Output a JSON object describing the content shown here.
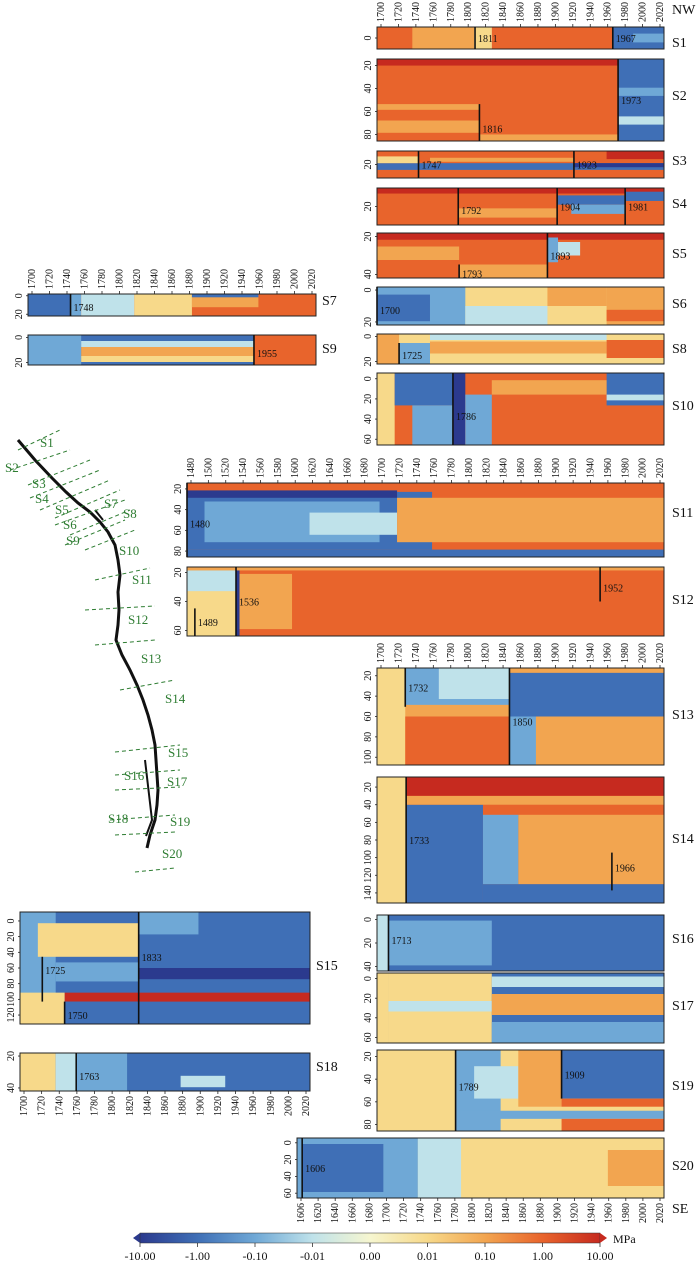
{
  "figure": {
    "orientation_top": "NW",
    "orientation_bottom": "SE",
    "colorbar": {
      "ticks": [
        "-10.00",
        "-1.00",
        "-0.10",
        "-0.01",
        "0.00",
        "0.01",
        "0.10",
        "1.00",
        "10.00"
      ],
      "unit": "MPa",
      "colors": [
        "#2b3a8e",
        "#3f6fb6",
        "#6fa8d6",
        "#bfe2ea",
        "#f6f6d0",
        "#f7d98a",
        "#f2a550",
        "#e8642c",
        "#c62a1f"
      ]
    },
    "map_labels": [
      "S1",
      "S2",
      "S3",
      "S4",
      "S5",
      "S6",
      "S7",
      "S8",
      "S9",
      "S10",
      "S11",
      "S12",
      "S13",
      "S14",
      "S15",
      "S16",
      "S17",
      "S18",
      "S19",
      "S20"
    ]
  },
  "chart_data": [
    {
      "type": "heatmap",
      "segment": "S1",
      "x_range": [
        1700,
        2025
      ],
      "x_ticks": [
        "1700",
        "1720",
        "1740",
        "1760",
        "1780",
        "1800",
        "1820",
        "1840",
        "1860",
        "1880",
        "1900",
        "1920",
        "1940",
        "1960",
        "1980",
        "2000",
        "2020"
      ],
      "y_ticks": [
        "0"
      ],
      "events": [
        "1811",
        "1967"
      ]
    },
    {
      "type": "heatmap",
      "segment": "S2",
      "x_range": [
        1700,
        2025
      ],
      "y_ticks": [
        "20",
        "40",
        "60",
        "80"
      ],
      "events": [
        "1816",
        "1973"
      ]
    },
    {
      "type": "heatmap",
      "segment": "S3",
      "x_range": [
        1700,
        2025
      ],
      "y_ticks": [
        "20"
      ],
      "events": [
        "1747",
        "1923"
      ]
    },
    {
      "type": "heatmap",
      "segment": "S4",
      "x_range": [
        1700,
        2025
      ],
      "y_ticks": [
        "20"
      ],
      "events": [
        "1792",
        "1904",
        "1981"
      ]
    },
    {
      "type": "heatmap",
      "segment": "S5",
      "x_range": [
        1700,
        2025
      ],
      "y_ticks": [
        "20",
        "40"
      ],
      "events": [
        "1793",
        "1893"
      ]
    },
    {
      "type": "heatmap",
      "segment": "S6",
      "x_range": [
        1700,
        2025
      ],
      "y_ticks": [
        "0",
        "20"
      ],
      "events": [
        "1700"
      ]
    },
    {
      "type": "heatmap",
      "segment": "S7",
      "x_range": [
        1700,
        2025
      ],
      "x_ticks": [
        "1700",
        "1720",
        "1740",
        "1760",
        "1780",
        "1800",
        "1820",
        "1840",
        "1860",
        "1880",
        "1900",
        "1920",
        "1940",
        "1960",
        "1980",
        "2000",
        "2020"
      ],
      "y_ticks": [
        "0",
        "20"
      ],
      "events": [
        "1748"
      ]
    },
    {
      "type": "heatmap",
      "segment": "S8",
      "x_range": [
        1700,
        2025
      ],
      "y_ticks": [
        "0",
        "20"
      ],
      "events": [
        "1725"
      ]
    },
    {
      "type": "heatmap",
      "segment": "S9",
      "x_range": [
        1700,
        2025
      ],
      "y_ticks": [
        "0",
        "20"
      ],
      "events": [
        "1955"
      ]
    },
    {
      "type": "heatmap",
      "segment": "S10",
      "x_range": [
        1700,
        2025
      ],
      "y_ticks": [
        "0",
        "20",
        "40",
        "60"
      ],
      "events": [
        "1786"
      ]
    },
    {
      "type": "heatmap",
      "segment": "S11",
      "x_range": [
        1480,
        2025
      ],
      "x_ticks": [
        "1480",
        "1500",
        "1520",
        "1540",
        "1560",
        "1580",
        "1600",
        "1620",
        "1640",
        "1660",
        "1680",
        "1700",
        "1720",
        "1740",
        "1760",
        "1780",
        "1800",
        "1820",
        "1840",
        "1860",
        "1880",
        "1900",
        "1920",
        "1940",
        "1960",
        "1980",
        "2000",
        "2020"
      ],
      "y_ticks": [
        "20",
        "40",
        "60",
        "80"
      ],
      "events": [
        "1480"
      ]
    },
    {
      "type": "heatmap",
      "segment": "S12",
      "x_range": [
        1480,
        2025
      ],
      "y_ticks": [
        "20",
        "40",
        "60"
      ],
      "events": [
        "1489",
        "1536",
        "1952"
      ]
    },
    {
      "type": "heatmap",
      "segment": "S13",
      "x_range": [
        1700,
        2025
      ],
      "x_ticks": [
        "1700",
        "1720",
        "1740",
        "1760",
        "1780",
        "1800",
        "1820",
        "1840",
        "1860",
        "1880",
        "1900",
        "1920",
        "1940",
        "1960",
        "1980",
        "2000",
        "2020"
      ],
      "y_ticks": [
        "20",
        "40",
        "60",
        "80",
        "100"
      ],
      "events": [
        "1732",
        "1850"
      ]
    },
    {
      "type": "heatmap",
      "segment": "S14",
      "x_range": [
        1700,
        2025
      ],
      "y_ticks": [
        "20",
        "40",
        "60",
        "80",
        "100",
        "120",
        "140"
      ],
      "events": [
        "1733",
        "1966"
      ]
    },
    {
      "type": "heatmap",
      "segment": "S15",
      "x_range": [
        1700,
        2025
      ],
      "y_ticks": [
        "0",
        "20",
        "40",
        "60",
        "80",
        "100",
        "120"
      ],
      "events": [
        "1725",
        "1833",
        "1750"
      ]
    },
    {
      "type": "heatmap",
      "segment": "S16",
      "x_range": [
        1700,
        2025
      ],
      "y_ticks": [
        "0",
        "20",
        "40"
      ],
      "events": [
        "1713"
      ]
    },
    {
      "type": "heatmap",
      "segment": "S17",
      "x_range": [
        1700,
        2025
      ],
      "y_ticks": [
        "0",
        "20",
        "40",
        "60"
      ],
      "events": []
    },
    {
      "type": "heatmap",
      "segment": "S18",
      "x_range": [
        1700,
        2025
      ],
      "x_ticks": [
        "1700",
        "1720",
        "1740",
        "1760",
        "1780",
        "1800",
        "1820",
        "1840",
        "1860",
        "1880",
        "1900",
        "1920",
        "1940",
        "1960",
        "1980",
        "2000",
        "2020"
      ],
      "y_ticks": [
        "20",
        "40"
      ],
      "events": [
        "1763"
      ]
    },
    {
      "type": "heatmap",
      "segment": "S19",
      "x_range": [
        1700,
        2025
      ],
      "y_ticks": [
        "20",
        "40",
        "60",
        "80"
      ],
      "events": [
        "1789",
        "1909"
      ]
    },
    {
      "type": "heatmap",
      "segment": "S20",
      "x_range": [
        1600,
        2025
      ],
      "x_ticks": [
        "1606",
        "1620",
        "1640",
        "1660",
        "1680",
        "1700",
        "1720",
        "1740",
        "1760",
        "1780",
        "1800",
        "1820",
        "1840",
        "1860",
        "1880",
        "1900",
        "1920",
        "1940",
        "1960",
        "1980",
        "2000",
        "2020"
      ],
      "y_ticks": [
        "0",
        "20",
        "40",
        "60"
      ],
      "events": [
        "1606"
      ]
    }
  ]
}
